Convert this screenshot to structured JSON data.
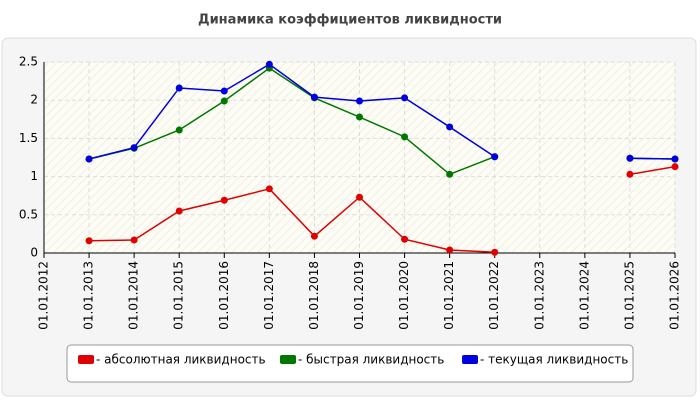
{
  "chart_data": {
    "type": "line",
    "title": "Динамика коэффициентов ликвидности",
    "categories": [
      "01.01.2012",
      "01.01.2013",
      "01.01.2014",
      "01.01.2015",
      "01.01.2016",
      "01.01.2017",
      "01.01.2018",
      "01.01.2019",
      "01.01.2020",
      "01.01.2021",
      "01.01.2022",
      "01.01.2023",
      "01.01.2024",
      "01.01.2025",
      "01.01.2026"
    ],
    "series": [
      {
        "name": "- абсолютная ликвидность",
        "color": "#e00000",
        "values": [
          null,
          0.16,
          0.17,
          0.55,
          0.69,
          0.84,
          0.22,
          0.73,
          0.18,
          0.04,
          0.01,
          null,
          null,
          1.03,
          1.13
        ]
      },
      {
        "name": "- быстрая ликвидность",
        "color": "#007800",
        "values": [
          null,
          1.23,
          1.37,
          1.61,
          1.99,
          2.42,
          2.03,
          1.78,
          1.52,
          1.03,
          1.26,
          null,
          null,
          1.24,
          1.23
        ]
      },
      {
        "name": "- текущая ликвидность",
        "color": "#0000e0",
        "values": [
          null,
          1.23,
          1.38,
          2.16,
          2.12,
          2.47,
          2.04,
          1.99,
          2.03,
          1.65,
          1.26,
          null,
          null,
          1.24,
          1.23
        ]
      }
    ],
    "ylim": [
      0,
      2.5
    ],
    "yticks": [
      0,
      0.5,
      1,
      1.5,
      2,
      2.5
    ],
    "grid": true
  }
}
